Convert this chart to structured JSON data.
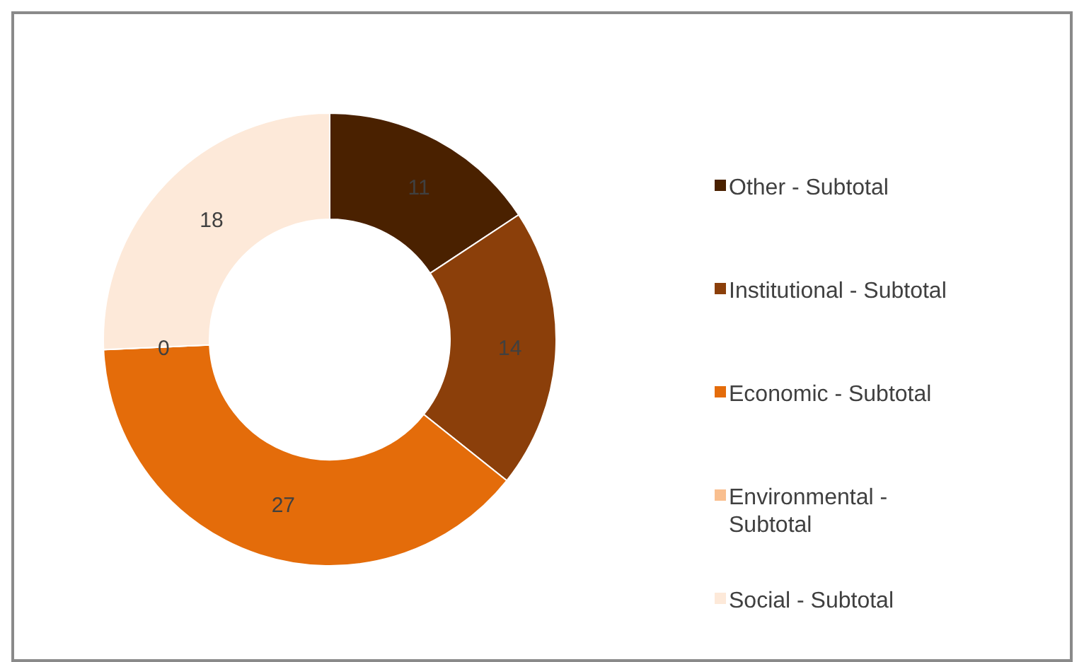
{
  "chart_data": {
    "type": "donut",
    "categories": [
      "Other - Subtotal",
      "Institutional - Subtotal",
      "Economic - Subtotal",
      "Environmental - Subtotal",
      "Social - Subtotal"
    ],
    "values": [
      11,
      14,
      27,
      0,
      18
    ],
    "colors": [
      "#4a2100",
      "#8b3f0a",
      "#e46c0a",
      "#f9bf8f",
      "#fde9d9"
    ],
    "value_labels": [
      "11",
      "14",
      "27",
      "0",
      "18"
    ],
    "legend": "right"
  }
}
